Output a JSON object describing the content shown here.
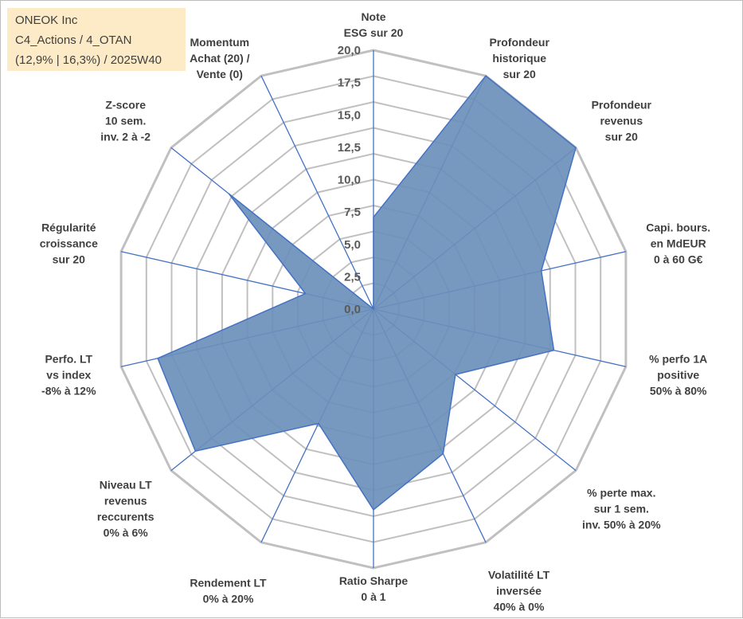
{
  "info": {
    "line1": "ONEOK Inc",
    "line2": "C4_Actions / 4_OTAN",
    "line3": "(12,9% | 16,3%) / 2025W40"
  },
  "chart_data": {
    "type": "radar",
    "rmin": 0,
    "rmax": 20,
    "ticks": [
      "0,0",
      "2,5",
      "5,0",
      "7,5",
      "10,0",
      "12,5",
      "15,0",
      "17,5",
      "20,0"
    ],
    "grid_levels": 10,
    "fill_color": "#6b8fba",
    "line_color": "#4472c4",
    "grid_color": "#c0c0c0",
    "axes": [
      {
        "label": [
          "Note",
          "ESG sur 20"
        ],
        "value": 7.1
      },
      {
        "label": [
          "Profondeur",
          "historique",
          "sur 20"
        ],
        "value": 20.0
      },
      {
        "label": [
          "Profondeur",
          "revenus",
          "sur 20"
        ],
        "value": 20.0
      },
      {
        "label": [
          "Capi. bours.",
          "en MdEUR",
          "0 à 60 G€"
        ],
        "value": 13.3
      },
      {
        "label": [
          "% perfo 1A",
          "positive",
          "50% à 80%"
        ],
        "value": 14.3
      },
      {
        "label": [
          "% perte max.",
          "sur 1 sem.",
          "inv. 50% à 20%"
        ],
        "value": 8.1
      },
      {
        "label": [
          "Volatilité LT",
          "inversée",
          "40% à 0%"
        ],
        "value": 12.4
      },
      {
        "label": [
          "Ratio Sharpe",
          "0 à 1"
        ],
        "value": 15.5
      },
      {
        "label": [
          "Rendement LT",
          "0% à 20%"
        ],
        "value": 9.8
      },
      {
        "label": [
          "Niveau LT",
          "revenus",
          "reccurents",
          "0% à 6%"
        ],
        "value": 17.6
      },
      {
        "label": [
          "Perfo. LT",
          "vs index",
          "-8% à 12%"
        ],
        "value": 17.1
      },
      {
        "label": [
          "Régularité",
          "croissance",
          "sur 20"
        ],
        "value": 5.4
      },
      {
        "label": [
          "Z-score",
          "10 sem.",
          "inv. 2 à -2"
        ],
        "value": 14.3
      },
      {
        "label": [
          "Momentum",
          "Achat (20) /",
          "Vente (0)"
        ],
        "value": 0.0
      }
    ]
  }
}
